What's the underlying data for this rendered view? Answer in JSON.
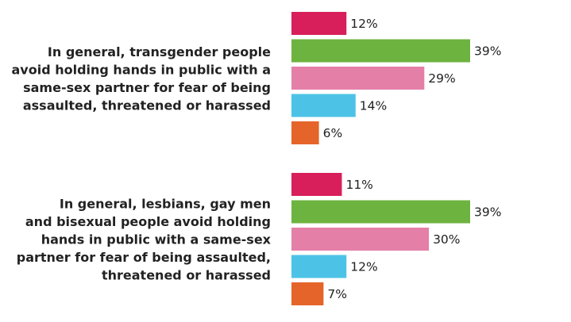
{
  "chart_data": {
    "type": "bar",
    "orientation": "horizontal",
    "title": "",
    "xlabel": "",
    "ylabel": "",
    "xlim": [
      0,
      39
    ],
    "grid": false,
    "legend": "none",
    "value_suffix": "%",
    "series_colors": [
      "#d81e5b",
      "#6db33f",
      "#e47fa8",
      "#4cc3e6",
      "#e5642a"
    ],
    "groups": [
      {
        "label_lines": [
          "In general, transgender people",
          "avoid holding hands in public with a",
          "same-sex partner for fear of being",
          "assaulted, threatened or harassed"
        ],
        "values": [
          12,
          39,
          29,
          14,
          6
        ]
      },
      {
        "label_lines": [
          "In general, lesbians, gay men",
          "and bisexual people avoid holding",
          "hands in public with a same-sex",
          "partner for fear of being assaulted,",
          "threatened or harassed"
        ],
        "values": [
          11,
          39,
          30,
          12,
          7
        ]
      }
    ]
  }
}
